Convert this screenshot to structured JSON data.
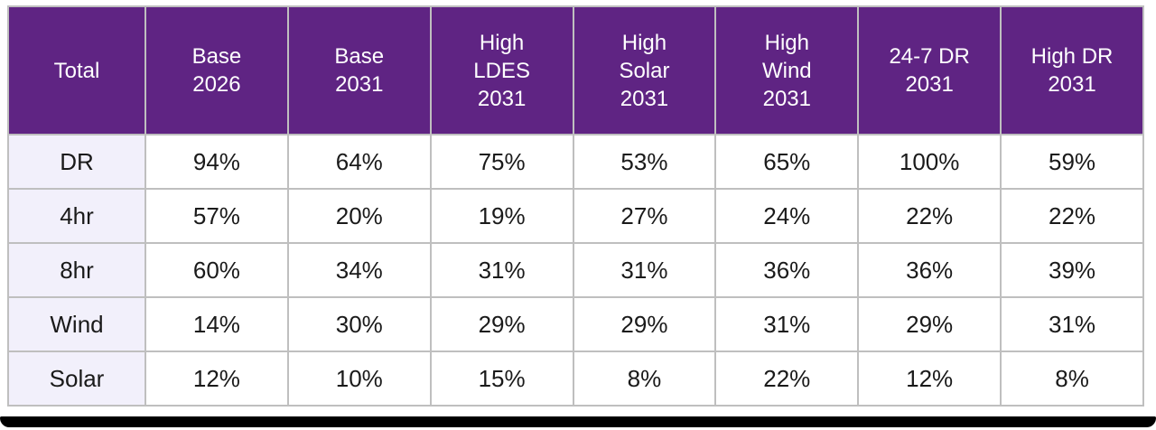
{
  "chart_data": {
    "type": "table",
    "columns": [
      "Total",
      "Base 2026",
      "Base 2031",
      "High LDES 2031",
      "High Solar 2031",
      "High Wind 2031",
      "24-7 DR 2031",
      "High DR 2031"
    ],
    "column_display": [
      "Total",
      "Base\n2026",
      "Base\n2031",
      "High\nLDES\n2031",
      "High\nSolar\n2031",
      "High\nWind\n2031",
      "24-7 DR\n2031",
      "High DR\n2031"
    ],
    "rows": [
      {
        "label": "DR",
        "values": [
          "94%",
          "64%",
          "75%",
          "53%",
          "65%",
          "100%",
          "59%"
        ]
      },
      {
        "label": "4hr",
        "values": [
          "57%",
          "20%",
          "19%",
          "27%",
          "24%",
          "22%",
          "22%"
        ]
      },
      {
        "label": "8hr",
        "values": [
          "60%",
          "34%",
          "31%",
          "31%",
          "36%",
          "36%",
          "39%"
        ]
      },
      {
        "label": "Wind",
        "values": [
          "14%",
          "30%",
          "29%",
          "29%",
          "31%",
          "29%",
          "31%"
        ]
      },
      {
        "label": "Solar",
        "values": [
          "12%",
          "10%",
          "15%",
          "8%",
          "22%",
          "12%",
          "8%"
        ]
      }
    ],
    "legend_position": "none",
    "grid": true
  },
  "colors": {
    "header_bg": "#5F2483",
    "header_text": "#FFFFFF",
    "row_label_bg": "#F2F0FB",
    "cell_bg": "#FFFFFF",
    "body_text": "#1A1A1A",
    "border": "#BFBFBF",
    "frame_bar": "#000000"
  }
}
